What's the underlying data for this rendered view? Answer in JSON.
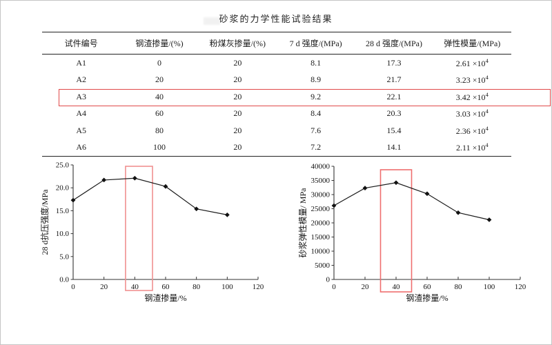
{
  "page": {
    "title": "砂浆的力学性能试验结果"
  },
  "table": {
    "headers": [
      "试件编号",
      "钢渣掺量/(%)",
      "粉煤灰掺量/(%)",
      "7 d 强度/(MPa)",
      "28 d 强度/(MPa)",
      "弹性模量/(MPa)"
    ],
    "col_keys": [
      "specimen-id",
      "slag-content",
      "flyash-content",
      "strength-7d",
      "strength-28d",
      "elastic-modulus"
    ],
    "rows": [
      {
        "id": "A1",
        "slag": "0",
        "flyash": "20",
        "d7": "8.1",
        "d28": "17.3",
        "modulus_base": "2.61 ×10",
        "modulus_exp": "4"
      },
      {
        "id": "A2",
        "slag": "20",
        "flyash": "20",
        "d7": "8.9",
        "d28": "21.7",
        "modulus_base": "3.23 ×10",
        "modulus_exp": "4"
      },
      {
        "id": "A3",
        "slag": "40",
        "flyash": "20",
        "d7": "9.2",
        "d28": "22.1",
        "modulus_base": "3.42 ×10",
        "modulus_exp": "4"
      },
      {
        "id": "A4",
        "slag": "60",
        "flyash": "20",
        "d7": "8.4",
        "d28": "20.3",
        "modulus_base": "3.03 ×10",
        "modulus_exp": "4"
      },
      {
        "id": "A5",
        "slag": "80",
        "flyash": "20",
        "d7": "7.6",
        "d28": "15.4",
        "modulus_base": "2.36 ×10",
        "modulus_exp": "4"
      },
      {
        "id": "A6",
        "slag": "100",
        "flyash": "20",
        "d7": "7.2",
        "d28": "14.1",
        "modulus_base": "2.11 ×10",
        "modulus_exp": "4"
      }
    ],
    "highlighted_row": "A3",
    "highlight_color": "#e04848"
  },
  "chart_data": [
    {
      "type": "line",
      "title": "",
      "xlabel": "钢渣掺量/%",
      "ylabel": "28 d抗压强度/MPa",
      "x": [
        0,
        20,
        40,
        60,
        80,
        100
      ],
      "y": [
        17.3,
        21.7,
        22.1,
        20.3,
        15.4,
        14.1
      ],
      "xlim": [
        0,
        120
      ],
      "ylim": [
        0,
        25
      ],
      "xticks": [
        0,
        20,
        40,
        60,
        80,
        100,
        120
      ],
      "ytick_labels": [
        "0.0",
        "5.0",
        "10.0",
        "15.0",
        "20.0",
        "25.0"
      ],
      "ytick_values": [
        0,
        5,
        10,
        15,
        20,
        25
      ],
      "grid": false,
      "legend": "none",
      "line_color": "#1a1a1a",
      "marker": "diamond",
      "highlight": {
        "x0": 34,
        "x1": 51.5,
        "color": "#f09090"
      }
    },
    {
      "type": "line",
      "title": "",
      "xlabel": "钢渣掺量/%",
      "ylabel": "砂浆弹性模量/ MPa",
      "x": [
        0,
        20,
        40,
        60,
        80,
        100
      ],
      "y": [
        26100,
        32300,
        34200,
        30300,
        23600,
        21100
      ],
      "xlim": [
        0,
        120
      ],
      "ylim": [
        0,
        40000
      ],
      "xticks": [
        0,
        20,
        40,
        60,
        80,
        100,
        120
      ],
      "ytick_labels": [
        "0",
        "5000",
        "10000",
        "15000",
        "20000",
        "25000",
        "30000",
        "35000",
        "40000"
      ],
      "ytick_values": [
        0,
        5000,
        10000,
        15000,
        20000,
        25000,
        30000,
        35000,
        40000
      ],
      "grid": false,
      "legend": "none",
      "line_color": "#1a1a1a",
      "marker": "diamond",
      "highlight": {
        "x0": 30,
        "x1": 50,
        "color": "#ef6e6e"
      }
    }
  ]
}
